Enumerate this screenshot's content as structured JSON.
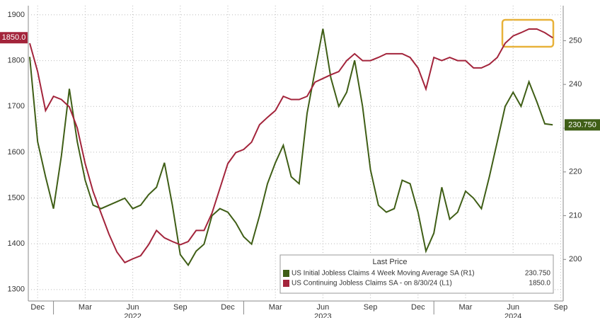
{
  "chart_data": {
    "type": "line",
    "legend_title": "Last Price",
    "categories": [
      null,
      "Dec",
      null,
      null,
      null,
      null,
      null,
      "Mar",
      null,
      null,
      null,
      null,
      null,
      "Jun",
      null,
      null,
      null,
      null,
      null,
      "Sep",
      null,
      null,
      null,
      null,
      null,
      "Dec",
      null,
      null,
      null,
      null,
      null,
      "Mar",
      null,
      null,
      null,
      null,
      null,
      "Jun",
      null,
      null,
      null,
      null,
      null,
      "Sep",
      null,
      null,
      null,
      null,
      null,
      "Dec",
      null,
      null,
      null,
      null,
      null,
      "Mar",
      null,
      null,
      null,
      null,
      null,
      "Jun",
      null,
      null,
      null,
      null,
      null,
      "Sep"
    ],
    "year_labels": [
      "2022",
      "2023",
      "2024"
    ],
    "series": [
      {
        "name": "US Initial Jobless Claims 4 Week Moving Average SA  (R1)",
        "color": "#3f5e16",
        "axis": "y2",
        "last_price_label": "230.750",
        "values": [
          246.3,
          226.9,
          218.9,
          211.6,
          223.7,
          239.0,
          226.9,
          218.1,
          212.4,
          211.6,
          212.4,
          213.2,
          214.0,
          211.6,
          212.4,
          214.8,
          216.5,
          222.1,
          212.4,
          201.1,
          198.7,
          201.9,
          203.5,
          210.0,
          211.6,
          210.8,
          208.4,
          205.2,
          203.5,
          210.0,
          217.3,
          222.1,
          226.1,
          218.9,
          217.3,
          233.4,
          243.1,
          252.7,
          241.5,
          235.0,
          238.2,
          245.5,
          235.0,
          220.5,
          212.4,
          210.8,
          211.6,
          218.1,
          217.3,
          210.8,
          201.9,
          206.0,
          216.5,
          209.2,
          210.8,
          215.6,
          214.0,
          211.6,
          218.9,
          226.9,
          235.0,
          238.2,
          235.0,
          240.6,
          236.0,
          231.0,
          230.75,
          null
        ]
      },
      {
        "name": "US Continuing Jobless Claims SA -  on 8/30/24  (L1)",
        "color": "#a3243b",
        "axis": "y",
        "last_price_label": "1850.0",
        "values": [
          1838,
          1776,
          1691,
          1722,
          1715,
          1699,
          1653,
          1575,
          1514,
          1467,
          1421,
          1382,
          1359,
          1367,
          1374,
          1398,
          1429,
          1413,
          1405,
          1398,
          1405,
          1429,
          1429,
          1467,
          1521,
          1575,
          1599,
          1606,
          1622,
          1660,
          1676,
          1691,
          1722,
          1715,
          1715,
          1722,
          1753,
          1761,
          1769,
          1776,
          1800,
          1815,
          1800,
          1800,
          1807,
          1815,
          1815,
          1815,
          1807,
          1784,
          1738,
          1807,
          1800,
          1807,
          1800,
          1800,
          1784,
          1784,
          1792,
          1807,
          1838,
          1854,
          1861,
          1869,
          1869,
          1861,
          1850,
          null
        ]
      }
    ],
    "ylim": [
      1275,
      1920
    ],
    "yticks": [
      1300,
      1400,
      1500,
      1600,
      1700,
      1800,
      1900
    ],
    "y2lim": [
      190.5,
      258
    ],
    "y2ticks": [
      200,
      210,
      220,
      230,
      240,
      250
    ],
    "grid": true
  }
}
